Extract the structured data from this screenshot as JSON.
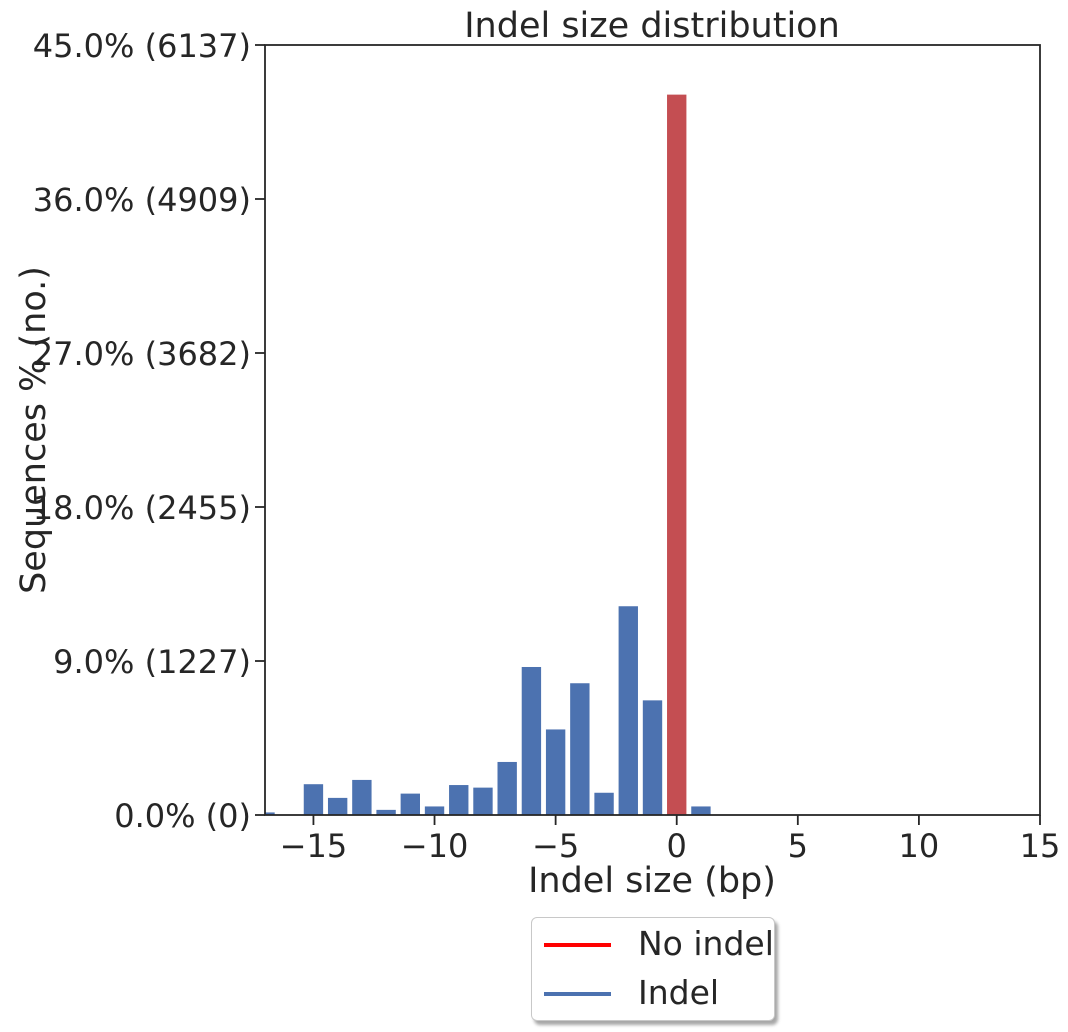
{
  "chart_data": {
    "type": "bar",
    "title": "Indel size distribution",
    "xlabel": "Indel size (bp)",
    "ylabel": "Sequences % (no.)",
    "xlim": [
      -17,
      15
    ],
    "ylim": [
      0,
      45.0
    ],
    "x_ticks": [
      -15,
      -10,
      -5,
      0,
      5,
      10,
      15
    ],
    "x_tick_labels": [
      "−15",
      "−10",
      "−5",
      "0",
      "5",
      "10",
      "15"
    ],
    "y_ticks": [
      0,
      9.0,
      18.0,
      27.0,
      36.0,
      45.0
    ],
    "y_tick_labels": [
      "0.0% (0)",
      "9.0% (1227)",
      "18.0% (2455)",
      "27.0% (3682)",
      "36.0% (4909)",
      "45.0% (6137)"
    ],
    "series": [
      {
        "name": "Indel",
        "color": "#4c72b0",
        "x": [
          -17,
          -15,
          -14,
          -13,
          -12,
          -11,
          -10,
          -9,
          -8,
          -7,
          -6,
          -5,
          -4,
          -3,
          -2,
          -1,
          1
        ],
        "values": [
          0.15,
          1.8,
          1.0,
          2.05,
          0.3,
          1.25,
          0.5,
          1.75,
          1.6,
          3.1,
          8.65,
          5.0,
          7.7,
          1.3,
          12.2,
          6.7,
          0.5
        ]
      },
      {
        "name": "No indel",
        "color": "#c44e52",
        "x": [
          0
        ],
        "values": [
          42.1
        ]
      }
    ],
    "legend": {
      "placement": "bottom-center",
      "entries": [
        {
          "label": "No indel",
          "color": "#ff0000"
        },
        {
          "label": "Indel",
          "color": "#4c72b0"
        }
      ]
    },
    "grid": false
  }
}
